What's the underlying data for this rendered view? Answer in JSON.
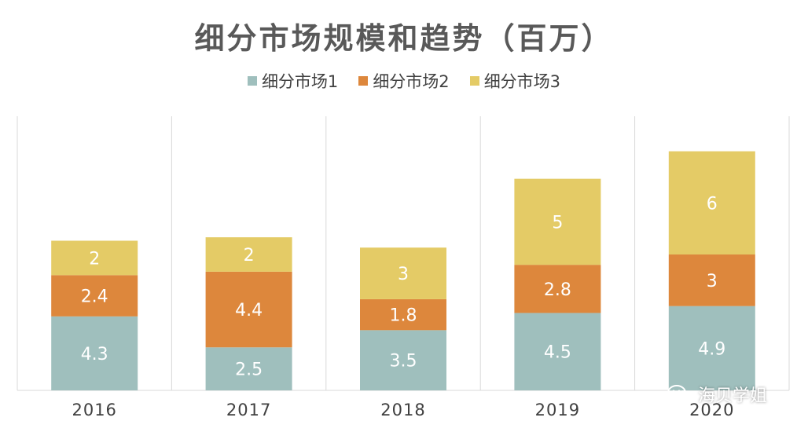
{
  "chart_data": {
    "type": "bar",
    "stacked": true,
    "title": "细分市场规模和趋势（百万）",
    "categories": [
      "2016",
      "2017",
      "2018",
      "2019",
      "2020"
    ],
    "series": [
      {
        "name": "细分市场1",
        "color": "#9fbfbd",
        "values": [
          4.3,
          2.5,
          3.5,
          4.5,
          4.9
        ]
      },
      {
        "name": "细分市场2",
        "color": "#dd873c",
        "values": [
          2.4,
          4.4,
          1.8,
          2.8,
          3
        ]
      },
      {
        "name": "细分市场3",
        "color": "#e4cb66",
        "values": [
          2,
          2,
          3,
          5,
          6
        ]
      }
    ],
    "legend_position": "top",
    "grid": "vertical",
    "ylim": [
      0,
      16
    ]
  },
  "watermark": {
    "text": "海贝学姐",
    "icon": "wechat-icon"
  }
}
